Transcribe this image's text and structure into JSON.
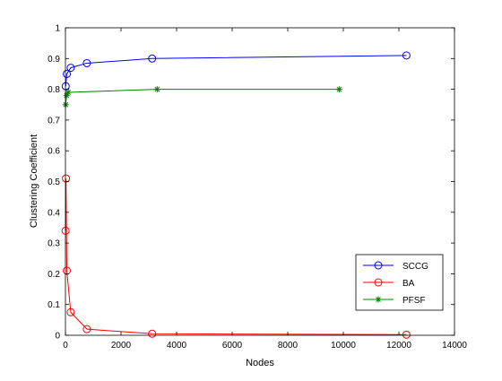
{
  "colors": {
    "background": "#ffffff",
    "axes": "#000000",
    "sccg": "#0000ff",
    "ba": "#ff0000",
    "pfsf": "#008000"
  },
  "chart_data": {
    "type": "line",
    "title": "",
    "xlabel": "Nodes",
    "ylabel": "Clustering Coefficient",
    "xlim": [
      0,
      14000
    ],
    "ylim": [
      0,
      1
    ],
    "xticks": [
      0,
      2000,
      4000,
      6000,
      8000,
      10000,
      12000,
      14000
    ],
    "xtick_labels": [
      "0",
      "2000",
      "4000",
      "6000",
      "8000",
      "10000",
      "12000",
      "14000"
    ],
    "yticks": [
      0,
      0.1,
      0.2,
      0.3,
      0.4,
      0.5,
      0.6,
      0.7,
      0.8,
      0.9,
      1
    ],
    "ytick_labels": [
      "0",
      "0.1",
      "0.2",
      "0.3",
      "0.4",
      "0.5",
      "0.6",
      "0.7",
      "0.8",
      "0.9",
      "1"
    ],
    "grid": false,
    "legend_position": "bottom-right",
    "series": [
      {
        "name": "SCCG",
        "color": "#0000ff",
        "marker": "circle",
        "x": [
          10,
          50,
          190,
          770,
          3120,
          12270
        ],
        "y": [
          0.81,
          0.85,
          0.87,
          0.885,
          0.9,
          0.91
        ]
      },
      {
        "name": "BA",
        "color": "#ff0000",
        "marker": "circle",
        "x": [
          5,
          20,
          50,
          190,
          770,
          3120,
          12270
        ],
        "y": [
          0.34,
          0.51,
          0.21,
          0.075,
          0.02,
          0.005,
          0.002
        ]
      },
      {
        "name": "PFSF",
        "color": "#008000",
        "marker": "star",
        "x": [
          10,
          40,
          100,
          3300,
          9850
        ],
        "y": [
          0.75,
          0.78,
          0.79,
          0.8,
          0.8
        ]
      }
    ]
  }
}
